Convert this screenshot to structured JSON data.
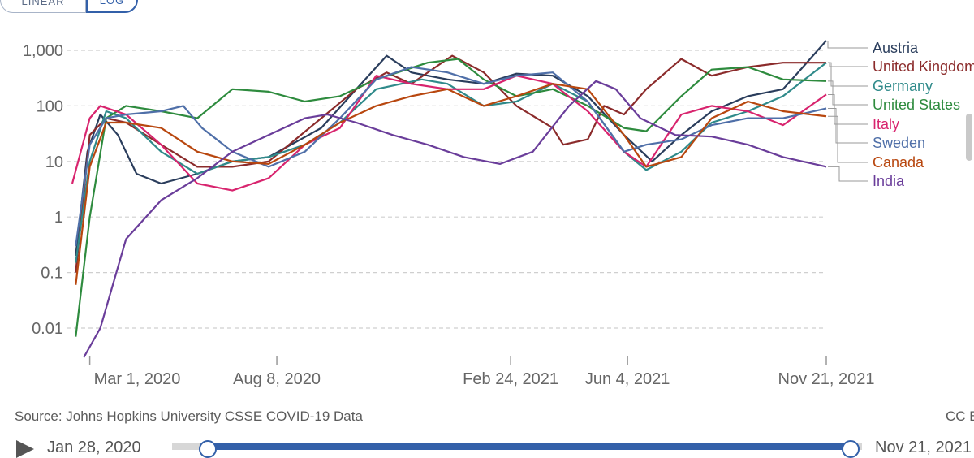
{
  "controls": {
    "linear_label": "LINEAR",
    "log_label": "LOG",
    "selected": "LOG"
  },
  "colors": {
    "Austria": "#2a3d5c",
    "United Kingdom": "#8b2b2b",
    "Germany": "#2f8a8a",
    "United States": "#2e8b3e",
    "Italy": "#d8246e",
    "Sweden": "#4f6fa8",
    "Canada": "#b8470f",
    "India": "#6a3d9a"
  },
  "chart_data": {
    "type": "line",
    "title": "",
    "xlabel": "",
    "ylabel": "",
    "y_scale": "log",
    "ylim": [
      0.003,
      1500
    ],
    "y_ticks": [
      {
        "value": 0.01,
        "label": "0.01"
      },
      {
        "value": 0.1,
        "label": "0.1"
      },
      {
        "value": 1,
        "label": "1"
      },
      {
        "value": 10,
        "label": "10"
      },
      {
        "value": 100,
        "label": "100"
      },
      {
        "value": 1000,
        "label": "1,000"
      }
    ],
    "xlim": [
      "2020-02-15",
      "2021-11-21"
    ],
    "x_ticks": [
      {
        "date": "2020-03-01",
        "label": "Mar 1, 2020"
      },
      {
        "date": "2020-08-08",
        "label": "Aug 8, 2020"
      },
      {
        "date": "2021-02-24",
        "label": "Feb 24, 2021"
      },
      {
        "date": "2021-06-04",
        "label": "Jun 4, 2021"
      },
      {
        "date": "2021-11-21",
        "label": "Nov 21, 2021"
      }
    ],
    "grid": true,
    "legend_position": "right",
    "series": [
      {
        "name": "Austria",
        "points": [
          [
            "2020-02-18",
            0.2
          ],
          [
            "2020-02-28",
            15
          ],
          [
            "2020-03-10",
            70
          ],
          [
            "2020-03-25",
            30
          ],
          [
            "2020-04-10",
            6
          ],
          [
            "2020-05-01",
            4
          ],
          [
            "2020-06-01",
            6
          ],
          [
            "2020-07-01",
            10
          ],
          [
            "2020-08-01",
            12
          ],
          [
            "2020-09-15",
            40
          ],
          [
            "2020-10-15",
            200
          ],
          [
            "2020-11-10",
            800
          ],
          [
            "2020-12-01",
            400
          ],
          [
            "2021-01-01",
            300
          ],
          [
            "2021-02-01",
            250
          ],
          [
            "2021-03-01",
            380
          ],
          [
            "2021-04-01",
            350
          ],
          [
            "2021-05-01",
            150
          ],
          [
            "2021-06-01",
            30
          ],
          [
            "2021-06-25",
            10
          ],
          [
            "2021-07-20",
            30
          ],
          [
            "2021-08-15",
            80
          ],
          [
            "2021-09-15",
            150
          ],
          [
            "2021-10-15",
            200
          ],
          [
            "2021-11-01",
            500
          ],
          [
            "2021-11-21",
            1500
          ]
        ]
      },
      {
        "name": "United Kingdom",
        "points": [
          [
            "2020-02-18",
            0.1
          ],
          [
            "2020-03-01",
            30
          ],
          [
            "2020-03-15",
            60
          ],
          [
            "2020-04-01",
            50
          ],
          [
            "2020-05-01",
            20
          ],
          [
            "2020-06-01",
            8
          ],
          [
            "2020-07-01",
            8
          ],
          [
            "2020-08-01",
            10
          ],
          [
            "2020-09-15",
            60
          ],
          [
            "2020-10-15",
            200
          ],
          [
            "2020-11-10",
            400
          ],
          [
            "2020-12-01",
            250
          ],
          [
            "2021-01-05",
            800
          ],
          [
            "2021-02-01",
            400
          ],
          [
            "2021-03-01",
            100
          ],
          [
            "2021-04-01",
            40
          ],
          [
            "2021-04-10",
            20
          ],
          [
            "2021-05-01",
            25
          ],
          [
            "2021-05-15",
            100
          ],
          [
            "2021-06-01",
            70
          ],
          [
            "2021-06-20",
            200
          ],
          [
            "2021-07-20",
            700
          ],
          [
            "2021-08-15",
            350
          ],
          [
            "2021-09-15",
            500
          ],
          [
            "2021-10-15",
            600
          ],
          [
            "2021-11-21",
            600
          ]
        ]
      },
      {
        "name": "Germany",
        "points": [
          [
            "2020-02-18",
            0.15
          ],
          [
            "2020-03-01",
            10
          ],
          [
            "2020-03-15",
            80
          ],
          [
            "2020-04-01",
            60
          ],
          [
            "2020-05-01",
            15
          ],
          [
            "2020-06-01",
            6
          ],
          [
            "2020-07-01",
            10
          ],
          [
            "2020-08-01",
            12
          ],
          [
            "2020-09-01",
            20
          ],
          [
            "2020-10-01",
            50
          ],
          [
            "2020-11-01",
            200
          ],
          [
            "2020-12-10",
            300
          ],
          [
            "2021-01-01",
            250
          ],
          [
            "2021-02-01",
            100
          ],
          [
            "2021-03-01",
            120
          ],
          [
            "2021-04-01",
            250
          ],
          [
            "2021-05-01",
            120
          ],
          [
            "2021-06-01",
            15
          ],
          [
            "2021-06-20",
            7
          ],
          [
            "2021-07-20",
            15
          ],
          [
            "2021-08-15",
            50
          ],
          [
            "2021-09-15",
            80
          ],
          [
            "2021-10-15",
            150
          ],
          [
            "2021-11-21",
            600
          ]
        ]
      },
      {
        "name": "United States",
        "points": [
          [
            "2020-02-18",
            0.007
          ],
          [
            "2020-03-01",
            1
          ],
          [
            "2020-03-15",
            60
          ],
          [
            "2020-04-01",
            100
          ],
          [
            "2020-05-01",
            80
          ],
          [
            "2020-06-01",
            60
          ],
          [
            "2020-07-01",
            200
          ],
          [
            "2020-08-01",
            180
          ],
          [
            "2020-09-01",
            120
          ],
          [
            "2020-10-01",
            150
          ],
          [
            "2020-11-01",
            300
          ],
          [
            "2020-12-15",
            600
          ],
          [
            "2021-01-10",
            700
          ],
          [
            "2021-02-01",
            300
          ],
          [
            "2021-03-01",
            150
          ],
          [
            "2021-04-01",
            200
          ],
          [
            "2021-05-01",
            100
          ],
          [
            "2021-06-01",
            40
          ],
          [
            "2021-06-20",
            35
          ],
          [
            "2021-07-20",
            150
          ],
          [
            "2021-08-15",
            450
          ],
          [
            "2021-09-15",
            500
          ],
          [
            "2021-10-15",
            300
          ],
          [
            "2021-11-21",
            280
          ]
        ]
      },
      {
        "name": "Italy",
        "points": [
          [
            "2020-02-15",
            4
          ],
          [
            "2020-03-01",
            60
          ],
          [
            "2020-03-10",
            100
          ],
          [
            "2020-04-01",
            70
          ],
          [
            "2020-05-01",
            20
          ],
          [
            "2020-06-01",
            4
          ],
          [
            "2020-07-01",
            3
          ],
          [
            "2020-08-01",
            5
          ],
          [
            "2020-09-01",
            20
          ],
          [
            "2020-10-01",
            40
          ],
          [
            "2020-11-01",
            350
          ],
          [
            "2020-12-01",
            250
          ],
          [
            "2021-01-01",
            200
          ],
          [
            "2021-02-01",
            200
          ],
          [
            "2021-03-01",
            350
          ],
          [
            "2021-04-01",
            250
          ],
          [
            "2021-05-01",
            80
          ],
          [
            "2021-06-01",
            15
          ],
          [
            "2021-06-20",
            8
          ],
          [
            "2021-07-20",
            70
          ],
          [
            "2021-08-15",
            100
          ],
          [
            "2021-09-15",
            80
          ],
          [
            "2021-10-15",
            45
          ],
          [
            "2021-11-21",
            160
          ]
        ]
      },
      {
        "name": "Sweden",
        "points": [
          [
            "2020-02-18",
            0.3
          ],
          [
            "2020-03-01",
            20
          ],
          [
            "2020-03-15",
            60
          ],
          [
            "2020-04-01",
            70
          ],
          [
            "2020-05-01",
            80
          ],
          [
            "2020-05-20",
            100
          ],
          [
            "2020-06-05",
            40
          ],
          [
            "2020-07-01",
            15
          ],
          [
            "2020-08-01",
            8
          ],
          [
            "2020-09-01",
            15
          ],
          [
            "2020-10-01",
            60
          ],
          [
            "2020-11-01",
            300
          ],
          [
            "2020-12-01",
            500
          ],
          [
            "2021-01-01",
            400
          ],
          [
            "2021-02-01",
            250
          ],
          [
            "2021-03-01",
            350
          ],
          [
            "2021-04-01",
            400
          ],
          [
            "2021-05-01",
            120
          ],
          [
            "2021-06-01",
            15
          ],
          [
            "2021-06-20",
            20
          ],
          [
            "2021-07-20",
            25
          ],
          [
            "2021-08-15",
            45
          ],
          [
            "2021-09-15",
            60
          ],
          [
            "2021-10-15",
            60
          ],
          [
            "2021-11-21",
            90
          ]
        ]
      },
      {
        "name": "Canada",
        "points": [
          [
            "2020-02-18",
            0.06
          ],
          [
            "2020-03-01",
            8
          ],
          [
            "2020-03-15",
            50
          ],
          [
            "2020-04-01",
            50
          ],
          [
            "2020-05-01",
            40
          ],
          [
            "2020-06-01",
            15
          ],
          [
            "2020-07-01",
            10
          ],
          [
            "2020-08-01",
            9
          ],
          [
            "2020-09-01",
            20
          ],
          [
            "2020-10-01",
            50
          ],
          [
            "2020-11-01",
            100
          ],
          [
            "2020-12-01",
            150
          ],
          [
            "2021-01-01",
            200
          ],
          [
            "2021-02-01",
            100
          ],
          [
            "2021-03-01",
            150
          ],
          [
            "2021-04-01",
            250
          ],
          [
            "2021-05-01",
            200
          ],
          [
            "2021-06-01",
            30
          ],
          [
            "2021-06-20",
            8
          ],
          [
            "2021-07-20",
            12
          ],
          [
            "2021-08-15",
            60
          ],
          [
            "2021-09-15",
            120
          ],
          [
            "2021-10-15",
            80
          ],
          [
            "2021-11-21",
            65
          ]
        ]
      },
      {
        "name": "India",
        "points": [
          [
            "2020-02-25",
            0.003
          ],
          [
            "2020-03-10",
            0.01
          ],
          [
            "2020-04-01",
            0.4
          ],
          [
            "2020-05-01",
            2
          ],
          [
            "2020-06-01",
            5
          ],
          [
            "2020-07-01",
            15
          ],
          [
            "2020-08-01",
            30
          ],
          [
            "2020-09-01",
            60
          ],
          [
            "2020-09-20",
            70
          ],
          [
            "2020-10-15",
            50
          ],
          [
            "2020-11-15",
            30
          ],
          [
            "2020-12-15",
            20
          ],
          [
            "2021-01-15",
            12
          ],
          [
            "2021-02-15",
            9
          ],
          [
            "2021-03-15",
            15
          ],
          [
            "2021-04-15",
            100
          ],
          [
            "2021-05-08",
            280
          ],
          [
            "2021-05-25",
            200
          ],
          [
            "2021-06-15",
            60
          ],
          [
            "2021-07-15",
            30
          ],
          [
            "2021-08-15",
            28
          ],
          [
            "2021-09-15",
            20
          ],
          [
            "2021-10-15",
            12
          ],
          [
            "2021-11-21",
            8
          ]
        ]
      }
    ]
  },
  "footer": {
    "source": "Source: Johns Hopkins University CSSE COVID-19 Data",
    "license": "CC BY"
  },
  "timeline": {
    "start_label": "Jan 28, 2020",
    "end_label": "Nov 21, 2021"
  }
}
